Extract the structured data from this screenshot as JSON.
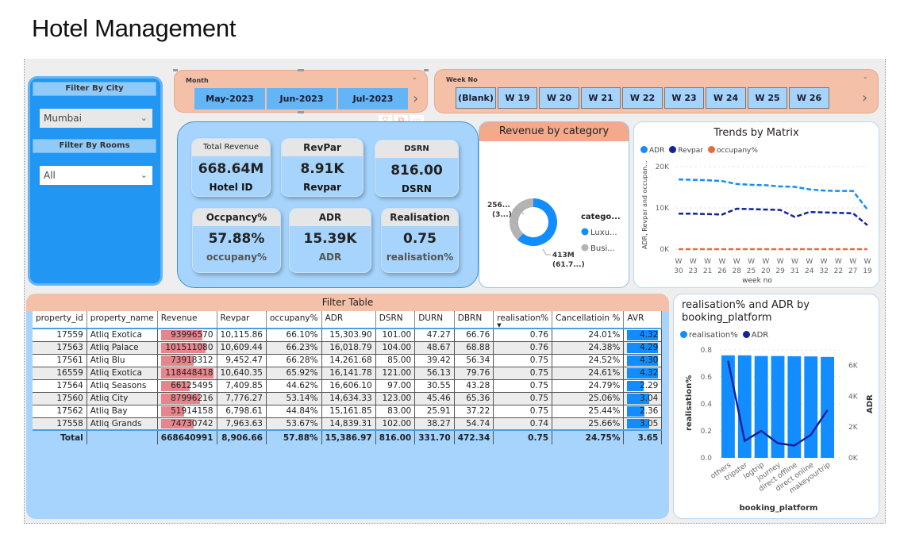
{
  "page": {
    "title": "Hotel Management"
  },
  "filters": {
    "city": {
      "header": "Filter By City",
      "value": "Mumbai"
    },
    "rooms": {
      "header": "Filter By Rooms",
      "value": "All"
    }
  },
  "month_slicer": {
    "title": "Month",
    "options": [
      "May-2023",
      "Jun-2023",
      "Jul-2023"
    ]
  },
  "week_slicer": {
    "title": "Week No",
    "options": [
      "(Blank)",
      "W 19",
      "W 20",
      "W 21",
      "W 22",
      "W 23",
      "W 24",
      "W 25",
      "W 26"
    ]
  },
  "visual_tools": {
    "filter_icon": "filter-icon",
    "focus_icon": "focus-mode-icon",
    "more_icon": "more-options-icon"
  },
  "kpis": [
    {
      "header": "Total Revenue",
      "value": "668.64M",
      "sub": "Hotel ID"
    },
    {
      "header": "RevPar",
      "value": "8.91K",
      "sub": "Revpar"
    },
    {
      "header": "DSRN",
      "value": "816.00",
      "sub": "DSRN"
    },
    {
      "header": "Occpancy%",
      "value": "57.88%",
      "sub": "occupany%"
    },
    {
      "header": "ADR",
      "value": "15.39K",
      "sub": "ADR"
    },
    {
      "header": "Realisation",
      "value": "0.75",
      "sub": "realisation%"
    }
  ],
  "chart_data": [
    {
      "type": "pie",
      "title": "Revenue by category",
      "legend_title": "catego...",
      "legend_position": "right",
      "slices": [
        {
          "name": "Luxury",
          "legend_label": "Luxu...",
          "value": 413,
          "label": "413M",
          "pct_label": "(61.7...)",
          "color": "#118dff"
        },
        {
          "name": "Business",
          "legend_label": "Busi...",
          "value": 256,
          "label": "256...",
          "pct_label": "(3...)",
          "color": "#b3b3b3"
        }
      ]
    },
    {
      "type": "line",
      "title": "Trends by Matrix",
      "xlabel": "week no",
      "ylabel": "ADR, Revpar and occupan...",
      "ylim": [
        0,
        20000
      ],
      "yticks": [
        "0K",
        "10K",
        "20K"
      ],
      "x": [
        "W 30",
        "W 23",
        "W 21",
        "W 26",
        "W 28",
        "W 25",
        "W 20",
        "W 29",
        "W 31",
        "W 24",
        "W 32",
        "W 22",
        "W 27",
        "W 19"
      ],
      "series": [
        {
          "name": "ADR",
          "color": "#118dff",
          "values": [
            16900,
            16800,
            16700,
            16500,
            15800,
            15600,
            15500,
            15200,
            15100,
            14500,
            14200,
            14100,
            14100,
            9600
          ]
        },
        {
          "name": "Revpar",
          "color": "#12239e",
          "values": [
            8600,
            8600,
            8500,
            8400,
            9800,
            9700,
            9600,
            9500,
            7800,
            9000,
            8900,
            8800,
            8700,
            5800
          ]
        },
        {
          "name": "occupany%",
          "color": "#e66c37",
          "values": [
            0.6,
            0.6,
            0.6,
            0.6,
            0.6,
            0.6,
            0.6,
            0.6,
            0.6,
            0.6,
            0.6,
            0.6,
            0.6,
            0.6
          ]
        }
      ],
      "legend_position": "top-left"
    },
    {
      "type": "bar",
      "title": "realisation% and ADR by booking_platform",
      "xlabel": "booking_platform",
      "ylabel": "realisation%",
      "y2label": "ADR",
      "ylim": [
        0,
        0.8
      ],
      "yticks": [
        "0.0",
        "0.2",
        "0.4",
        "0.6",
        "0.8"
      ],
      "y2lim": [
        0,
        7000
      ],
      "y2ticks": [
        "0K",
        "2K",
        "4K",
        "6K"
      ],
      "categories": [
        "others",
        "tripster",
        "logtrip",
        "journey",
        "direct offline",
        "direct online",
        "makeyourtrip"
      ],
      "series": [
        {
          "name": "realisation%",
          "type": "bar",
          "color": "#118dff",
          "values": [
            0.76,
            0.76,
            0.755,
            0.755,
            0.753,
            0.752,
            0.748
          ]
        },
        {
          "name": "ADR",
          "type": "line",
          "axis": "secondary",
          "color": "#12239e",
          "values": [
            6300,
            1100,
            1750,
            950,
            800,
            1500,
            3100
          ]
        }
      ],
      "legend_position": "top-left"
    }
  ],
  "table": {
    "title": "Filter Table",
    "columns": [
      "property_id",
      "property_name",
      "Revenue",
      "Revpar",
      "occupany%",
      "ADR",
      "DSRN",
      "DURN",
      "DBRN",
      "realisation%",
      "Cancellatioin %",
      "AVR"
    ],
    "sorted_column": "realisation%",
    "rows": [
      [
        "17559",
        "Atliq Exotica",
        "93996570",
        "10,115.86",
        "66.10%",
        "15,303.90",
        "101.00",
        "47.27",
        "66.76",
        "0.76",
        "24.01%",
        "4.32"
      ],
      [
        "17563",
        "Atliq Palace",
        "101511080",
        "10,609.44",
        "66.23%",
        "16,018.79",
        "104.00",
        "48.67",
        "68.88",
        "0.76",
        "24.38%",
        "4.29"
      ],
      [
        "17561",
        "Atliq Blu",
        "73918312",
        "9,452.47",
        "66.28%",
        "14,261.68",
        "85.00",
        "39.42",
        "56.34",
        "0.75",
        "24.52%",
        "4.30"
      ],
      [
        "16559",
        "Atliq Exotica",
        "118448418",
        "10,640.35",
        "65.92%",
        "16,141.78",
        "121.00",
        "56.13",
        "79.76",
        "0.75",
        "24.61%",
        "4.32"
      ],
      [
        "17564",
        "Atliq Seasons",
        "66125495",
        "7,409.85",
        "44.62%",
        "16,606.10",
        "97.00",
        "30.55",
        "43.28",
        "0.75",
        "24.79%",
        "2.29"
      ],
      [
        "17560",
        "Atliq City",
        "87996216",
        "7,776.27",
        "53.14%",
        "14,634.33",
        "123.00",
        "45.46",
        "65.36",
        "0.75",
        "25.06%",
        "3.04"
      ],
      [
        "17562",
        "Atliq Bay",
        "51914158",
        "6,798.61",
        "44.84%",
        "15,161.85",
        "83.00",
        "25.91",
        "37.22",
        "0.75",
        "25.44%",
        "2.36"
      ],
      [
        "17558",
        "Atliq Grands",
        "74730742",
        "7,963.63",
        "53.67%",
        "14,839.31",
        "102.00",
        "38.27",
        "54.74",
        "0.74",
        "25.66%",
        "3.05"
      ]
    ],
    "total": [
      "Total",
      "",
      "668640991",
      "8,906.66",
      "57.88%",
      "15,386.97",
      "816.00",
      "331.70",
      "472.34",
      "0.75",
      "24.75%",
      "3.65"
    ],
    "revenue_bar_color": "#e8848c",
    "avr_bar_color": "#118dff"
  }
}
